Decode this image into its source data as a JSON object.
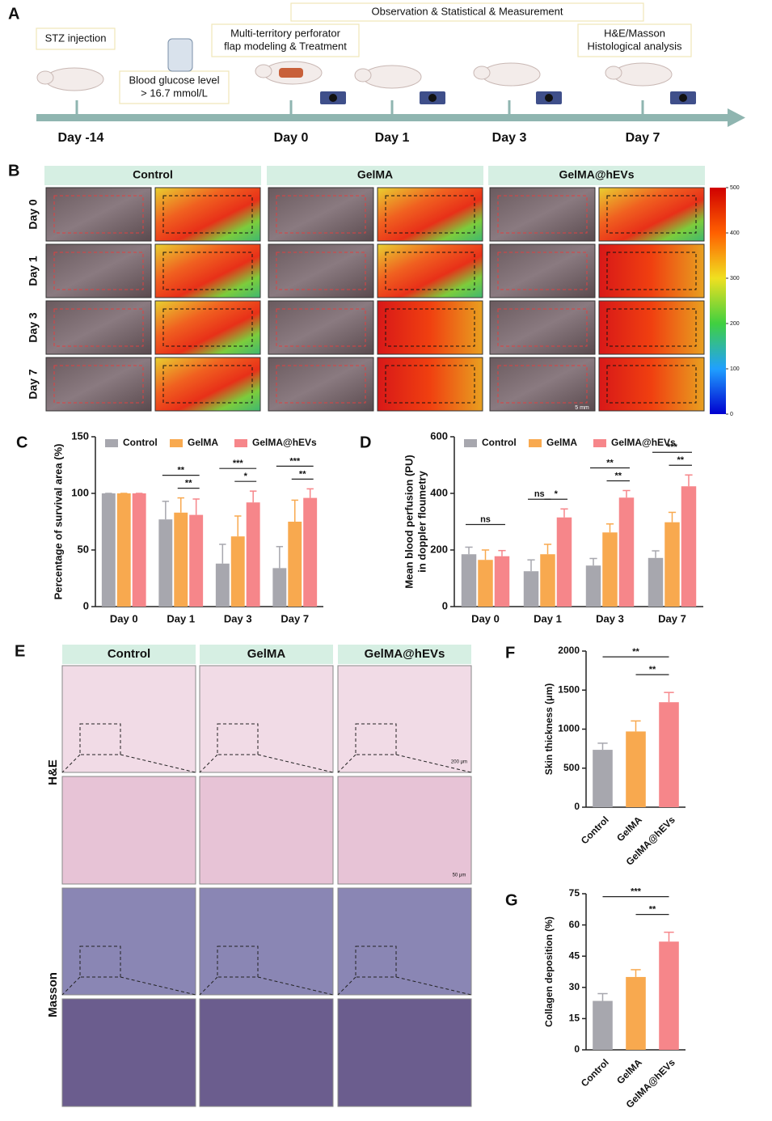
{
  "panel_a": {
    "label": "A",
    "notes": [
      [
        "STZ injection"
      ],
      [
        "Blood glucose level",
        "> 16.7 mmol/L"
      ],
      [
        "Multi-territory perforator",
        "flap modeling & Treatment"
      ],
      [
        "Observation & Statistical & Measurement"
      ],
      [
        "H&E/Masson",
        "Histological analysis"
      ]
    ],
    "days": [
      "Day -14",
      "Day 0",
      "Day 1",
      "Day 3",
      "Day 7"
    ]
  },
  "panel_b": {
    "label": "B",
    "groups": [
      "Control",
      "GelMA",
      "GelMA@hEVs"
    ],
    "rows": [
      "Day 0",
      "Day 1",
      "Day 3",
      "Day 7"
    ],
    "colorbar_lim": [
      0,
      500
    ],
    "colorbar_ticks": [
      0,
      100,
      200,
      300,
      400,
      500
    ],
    "scale_bar": "5 mm"
  },
  "panel_e": {
    "label": "E",
    "groups": [
      "Control",
      "GelMA",
      "GelMA@hEVs"
    ],
    "rows": [
      "H&E",
      "Masson"
    ],
    "scale_bars": [
      "200 μm",
      "50 μm"
    ]
  },
  "chart_data": [
    {
      "type": "bar",
      "label": "C",
      "ylabel": [
        "Percentage of survival area (%)"
      ],
      "categories": [
        "Day 0",
        "Day 1",
        "Day 3",
        "Day 7"
      ],
      "ylim": [
        0,
        150
      ],
      "yticks": [
        0,
        50,
        100,
        150
      ],
      "series": [
        {
          "name": "Control",
          "color": "#a7a7ae",
          "values": [
            100,
            77,
            38,
            34
          ],
          "errors": [
            0,
            16,
            17,
            19
          ]
        },
        {
          "name": "GelMA",
          "color": "#f8a94f",
          "values": [
            100,
            83,
            62,
            75
          ],
          "errors": [
            0,
            13,
            18,
            19
          ]
        },
        {
          "name": "GelMA@hEVs",
          "color": "#f6868a",
          "values": [
            100,
            81,
            92,
            96
          ],
          "errors": [
            0,
            14,
            10,
            8
          ]
        }
      ],
      "significance": [
        {
          "label": "**",
          "category": 1,
          "series": [
            0,
            2
          ]
        },
        {
          "label": "**",
          "category": 1,
          "series": [
            1,
            2
          ]
        },
        {
          "label": "***",
          "category": 2,
          "series": [
            0,
            2
          ]
        },
        {
          "label": "*",
          "category": 2,
          "series": [
            1,
            2
          ]
        },
        {
          "label": "***",
          "category": 3,
          "series": [
            0,
            2
          ]
        },
        {
          "label": "**",
          "category": 3,
          "series": [
            1,
            2
          ]
        }
      ]
    },
    {
      "type": "bar",
      "label": "D",
      "ylabel": [
        "Mean blood perfusion (PU)",
        "in doppler floumetry"
      ],
      "categories": [
        "Day 0",
        "Day 1",
        "Day 3",
        "Day 7"
      ],
      "ylim": [
        0,
        600
      ],
      "yticks": [
        0,
        200,
        400,
        600
      ],
      "series": [
        {
          "name": "Control",
          "color": "#a7a7ae",
          "values": [
            185,
            125,
            145,
            172
          ],
          "errors": [
            25,
            40,
            25,
            25
          ]
        },
        {
          "name": "GelMA",
          "color": "#f8a94f",
          "values": [
            165,
            185,
            262,
            298
          ],
          "errors": [
            35,
            35,
            30,
            35
          ]
        },
        {
          "name": "GelMA@hEVs",
          "color": "#f6868a",
          "values": [
            178,
            315,
            385,
            425
          ],
          "errors": [
            20,
            30,
            25,
            40
          ]
        }
      ],
      "significance": [
        {
          "label": "ns",
          "category": 0,
          "series": [
            0,
            2
          ]
        },
        {
          "label": "ns",
          "category": 1,
          "series": [
            0,
            1
          ]
        },
        {
          "label": "*",
          "category": 1,
          "series": [
            1,
            2
          ]
        },
        {
          "label": "**",
          "category": 2,
          "series": [
            0,
            2
          ]
        },
        {
          "label": "**",
          "category": 2,
          "series": [
            1,
            2
          ]
        },
        {
          "label": "***",
          "category": 3,
          "series": [
            0,
            2
          ]
        },
        {
          "label": "**",
          "category": 3,
          "series": [
            1,
            2
          ]
        }
      ]
    },
    {
      "type": "bar",
      "label": "F",
      "ylabel": [
        "Skin thickness (μm)"
      ],
      "xtick_rotation": -45,
      "categories": [
        "Control",
        "GelMA",
        "GelMA@hEVs"
      ],
      "colors": [
        "#a7a7ae",
        "#f8a94f",
        "#f6868a"
      ],
      "values": [
        735,
        970,
        1345
      ],
      "errors": [
        85,
        135,
        125
      ],
      "ylim": [
        0,
        2000
      ],
      "yticks": [
        0,
        500,
        1000,
        1500,
        2000
      ],
      "significance": [
        {
          "label": "**",
          "bars": [
            0,
            2
          ]
        },
        {
          "label": "**",
          "bars": [
            1,
            2
          ]
        }
      ]
    },
    {
      "type": "bar",
      "label": "G",
      "ylabel": [
        "Collagen deposition (%)"
      ],
      "xtick_rotation": -45,
      "categories": [
        "Control",
        "GelMA",
        "GelMA@hEVs"
      ],
      "colors": [
        "#a7a7ae",
        "#f8a94f",
        "#f6868a"
      ],
      "values": [
        23.5,
        35,
        52
      ],
      "errors": [
        3.5,
        3.5,
        4.5
      ],
      "ylim": [
        0,
        75
      ],
      "yticks": [
        0,
        15,
        30,
        45,
        60,
        75
      ],
      "significance": [
        {
          "label": "***",
          "bars": [
            0,
            2
          ]
        },
        {
          "label": "**",
          "bars": [
            1,
            2
          ]
        }
      ]
    }
  ]
}
